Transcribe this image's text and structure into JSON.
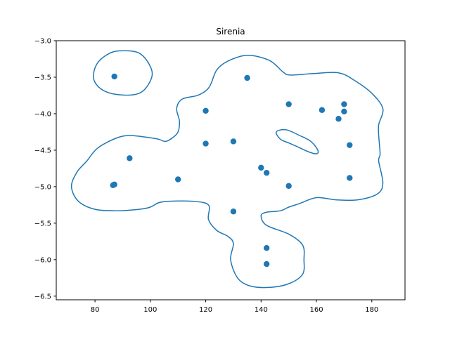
{
  "chart_data": {
    "type": "scatter",
    "title": "Sirenia",
    "xlabel": "",
    "ylabel": "",
    "xlim": [
      66,
      192
    ],
    "ylim": [
      -6.55,
      -3.0
    ],
    "x_ticks": [
      80,
      100,
      120,
      140,
      160,
      180
    ],
    "y_ticks": [
      -3.0,
      -3.5,
      -4.0,
      -4.5,
      -5.0,
      -5.5,
      -6.0,
      -6.5
    ],
    "grid": false,
    "series": [
      {
        "name": "",
        "color": "#1f77b4",
        "points": [
          {
            "x": 87,
            "y": -3.49
          },
          {
            "x": 135,
            "y": -3.51
          },
          {
            "x": 120,
            "y": -3.96
          },
          {
            "x": 150,
            "y": -3.87
          },
          {
            "x": 162,
            "y": -3.95
          },
          {
            "x": 170,
            "y": -3.87
          },
          {
            "x": 170,
            "y": -3.97
          },
          {
            "x": 168,
            "y": -4.07
          },
          {
            "x": 172,
            "y": -4.43
          },
          {
            "x": 120,
            "y": -4.41
          },
          {
            "x": 130,
            "y": -4.38
          },
          {
            "x": 92.5,
            "y": -4.61
          },
          {
            "x": 140,
            "y": -4.74
          },
          {
            "x": 142,
            "y": -4.81
          },
          {
            "x": 87,
            "y": -4.97
          },
          {
            "x": 86.5,
            "y": -4.98
          },
          {
            "x": 110,
            "y": -4.9
          },
          {
            "x": 150,
            "y": -4.99
          },
          {
            "x": 172,
            "y": -4.88
          },
          {
            "x": 130,
            "y": -5.34
          },
          {
            "x": 142,
            "y": -5.84
          },
          {
            "x": 142,
            "y": -6.06
          }
        ]
      }
    ],
    "contours": [
      {
        "name": "",
        "color": "#1f77b4",
        "path": [
          [
            88.5,
            -3.14
          ],
          [
            96,
            -3.17
          ],
          [
            100.3,
            -3.38
          ],
          [
            100,
            -3.55
          ],
          [
            96,
            -3.72
          ],
          [
            88.5,
            -3.74
          ],
          [
            82.5,
            -3.67
          ],
          [
            79.5,
            -3.52
          ],
          [
            80.5,
            -3.33
          ],
          [
            84,
            -3.2
          ],
          [
            88.5,
            -3.14
          ]
        ]
      },
      {
        "name": "",
        "color": "#1f77b4",
        "path": [
          [
            135,
            -3.2
          ],
          [
            143,
            -3.27
          ],
          [
            148,
            -3.43
          ],
          [
            150.5,
            -3.47
          ],
          [
            159,
            -3.45
          ],
          [
            168,
            -3.44
          ],
          [
            174,
            -3.55
          ],
          [
            180,
            -3.72
          ],
          [
            184,
            -3.93
          ],
          [
            182.5,
            -4.15
          ],
          [
            182.5,
            -4.3
          ],
          [
            183,
            -4.55
          ],
          [
            182.5,
            -4.65
          ],
          [
            184,
            -4.95
          ],
          [
            182,
            -5.1
          ],
          [
            175,
            -5.18
          ],
          [
            167,
            -5.18
          ],
          [
            160,
            -5.15
          ],
          [
            154,
            -5.23
          ],
          [
            150,
            -5.28
          ],
          [
            147,
            -5.33
          ],
          [
            142,
            -5.35
          ],
          [
            140,
            -5.4
          ],
          [
            142,
            -5.53
          ],
          [
            150,
            -5.65
          ],
          [
            155,
            -5.8
          ],
          [
            155.5,
            -6.0
          ],
          [
            155,
            -6.2
          ],
          [
            150,
            -6.33
          ],
          [
            143,
            -6.38
          ],
          [
            136,
            -6.36
          ],
          [
            131.5,
            -6.25
          ],
          [
            129,
            -6.0
          ],
          [
            130,
            -5.78
          ],
          [
            128,
            -5.68
          ],
          [
            124,
            -5.6
          ],
          [
            121,
            -5.45
          ],
          [
            121,
            -5.25
          ],
          [
            115,
            -5.2
          ],
          [
            107,
            -5.2
          ],
          [
            103,
            -5.22
          ],
          [
            100,
            -5.28
          ],
          [
            96,
            -5.31
          ],
          [
            88,
            -5.33
          ],
          [
            80,
            -5.31
          ],
          [
            74,
            -5.2
          ],
          [
            71.5,
            -5.0
          ],
          [
            73.5,
            -4.8
          ],
          [
            77,
            -4.65
          ],
          [
            81,
            -4.47
          ],
          [
            88,
            -4.33
          ],
          [
            93,
            -4.3
          ],
          [
            100,
            -4.33
          ],
          [
            103,
            -4.35
          ],
          [
            105.5,
            -4.38
          ],
          [
            108,
            -4.33
          ],
          [
            110,
            -4.25
          ],
          [
            110.5,
            -4.1
          ],
          [
            109.5,
            -3.93
          ],
          [
            111.5,
            -3.8
          ],
          [
            117,
            -3.75
          ],
          [
            120.5,
            -3.67
          ],
          [
            122,
            -3.58
          ],
          [
            124,
            -3.4
          ],
          [
            128,
            -3.28
          ],
          [
            135,
            -3.2
          ]
        ]
      },
      {
        "name": "",
        "color": "#1f77b4",
        "path": [
          [
            149,
            -4.22
          ],
          [
            154,
            -4.3
          ],
          [
            158,
            -4.38
          ],
          [
            160.5,
            -4.5
          ],
          [
            160,
            -4.55
          ],
          [
            157,
            -4.52
          ],
          [
            153,
            -4.45
          ],
          [
            150,
            -4.4
          ],
          [
            147,
            -4.35
          ],
          [
            145.5,
            -4.25
          ],
          [
            149,
            -4.22
          ]
        ]
      }
    ]
  }
}
